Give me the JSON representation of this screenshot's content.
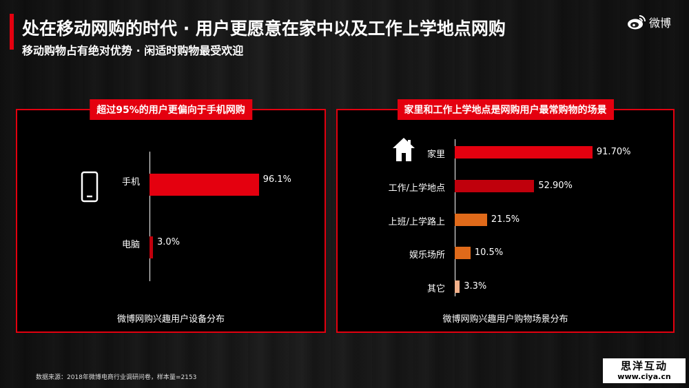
{
  "header": {
    "title": "处在移动网购的时代 · 用户更愿意在家中以及工作上学地点网购",
    "subtitle": "移动购物占有绝对优势 · 闲适时购物最受欢迎",
    "logo_text": "微博"
  },
  "colors": {
    "accent": "#e4000f",
    "bar_dark": "#c0000c",
    "bar_orange": "#e06a1a",
    "bar_peach": "#f2b08a"
  },
  "chart_data": [
    {
      "type": "bar",
      "orientation": "horizontal",
      "tag": "超过95%的用户更偏向于手机网购",
      "caption": "微博网购兴趣用户设备分布",
      "categories": [
        "手机",
        "电脑"
      ],
      "values": [
        96.1,
        3.0
      ],
      "value_labels": [
        "96.1%",
        "3.0%"
      ],
      "icons": [
        "mobile-phone-icon"
      ]
    },
    {
      "type": "bar",
      "orientation": "horizontal",
      "tag": "家里和工作上学地点是网购用户最常购物的场景",
      "caption": "微博网购兴趣用户购物场景分布",
      "categories": [
        "家里",
        "工作/上学地点",
        "上班/上学路上",
        "娱乐场所",
        "其它"
      ],
      "values": [
        91.7,
        52.9,
        21.5,
        10.5,
        3.3
      ],
      "value_labels": [
        "91.70%",
        "52.90%",
        "21.5%",
        "10.5%",
        "3.3%"
      ],
      "icons": [
        "house-icon"
      ]
    }
  ],
  "footer": {
    "source": "数据来源：2018年微博电商行业调研问卷，样本量=2153",
    "watermark_top": "思洋互动",
    "watermark_bottom": "www.ciya.cn"
  }
}
